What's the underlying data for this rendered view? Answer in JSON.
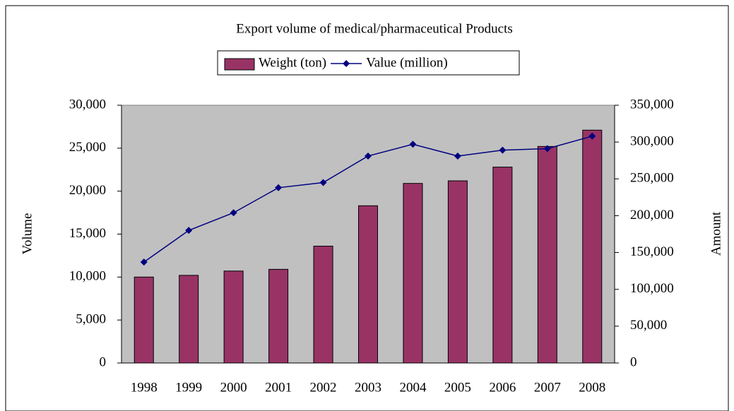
{
  "chart_data": {
    "type": "bar_line",
    "title": "Export volume of medical/pharmaceutical Products",
    "y_label": "Volume",
    "y2_label": "Amount",
    "categories": [
      "1998",
      "1999",
      "2000",
      "2001",
      "2002",
      "2003",
      "2004",
      "2005",
      "2006",
      "2007",
      "2008"
    ],
    "series": [
      {
        "name": "Weight (ton)",
        "type": "bar",
        "color": "#993366",
        "values": [
          10000,
          10200,
          10700,
          10900,
          13600,
          18300,
          20900,
          21200,
          22800,
          25200,
          27100
        ]
      },
      {
        "name": "Value (million)",
        "type": "line",
        "axis": "y2",
        "color": "#000080",
        "values": [
          137000,
          180000,
          204000,
          238000,
          245000,
          281000,
          297000,
          281000,
          289000,
          291000,
          308000
        ]
      }
    ],
    "ylim": [
      0,
      30000
    ],
    "yticks": [
      0,
      {
        "value": 5000,
        "label": "5,000"
      },
      {
        "value": 10000,
        "label": "10,000"
      },
      {
        "value": 15000,
        "label": "15,000"
      },
      {
        "value": 20000,
        "label": "20,000"
      },
      {
        "value": 25000,
        "label": "25,000"
      },
      {
        "value": 30000,
        "label": "30,000"
      }
    ],
    "y2lim": [
      0,
      350000
    ],
    "y2ticks": [
      0,
      {
        "value": 50000,
        "label": "50,000"
      },
      {
        "value": 100000,
        "label": "100,000"
      },
      {
        "value": 150000,
        "label": "150,000"
      },
      {
        "value": 200000,
        "label": "200,000"
      },
      {
        "value": 250000,
        "label": "250,000"
      },
      {
        "value": 300000,
        "label": "300,000"
      },
      {
        "value": 350000,
        "label": "350,000"
      }
    ],
    "plot_background": "#c0c0c0",
    "legend": "top"
  }
}
